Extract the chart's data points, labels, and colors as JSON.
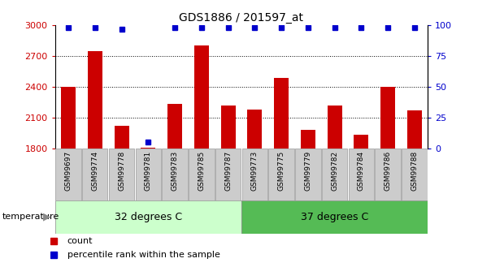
{
  "title": "GDS1886 / 201597_at",
  "samples": [
    "GSM99697",
    "GSM99774",
    "GSM99778",
    "GSM99781",
    "GSM99783",
    "GSM99785",
    "GSM99787",
    "GSM99773",
    "GSM99775",
    "GSM99779",
    "GSM99782",
    "GSM99784",
    "GSM99786",
    "GSM99788"
  ],
  "counts": [
    2400,
    2750,
    2020,
    1810,
    2230,
    2800,
    2220,
    2180,
    2490,
    1980,
    2220,
    1930,
    2400,
    2170
  ],
  "percentiles": [
    98,
    98,
    97,
    5,
    98,
    98,
    98,
    98,
    98,
    98,
    98,
    98,
    98,
    98
  ],
  "ylim_left": [
    1800,
    3000
  ],
  "ylim_right": [
    0,
    100
  ],
  "yticks_left": [
    1800,
    2100,
    2400,
    2700,
    3000
  ],
  "yticks_right": [
    0,
    25,
    50,
    75,
    100
  ],
  "gridlines": [
    2100,
    2400,
    2700
  ],
  "group1_label": "32 degrees C",
  "group2_label": "37 degrees C",
  "group1_count": 7,
  "group2_count": 7,
  "bar_color": "#cc0000",
  "dot_color": "#0000cc",
  "group1_bg": "#ccffcc",
  "group2_bg": "#55bb55",
  "sample_bg": "#cccccc",
  "sample_border": "#999999",
  "left_tick_color": "#cc0000",
  "right_tick_color": "#0000cc",
  "temperature_label": "temperature",
  "legend_count": "count",
  "legend_pct": "percentile rank within the sample",
  "legend_count_color": "#cc0000",
  "legend_pct_color": "#0000cc",
  "bar_width": 0.55,
  "dot_size": 5
}
